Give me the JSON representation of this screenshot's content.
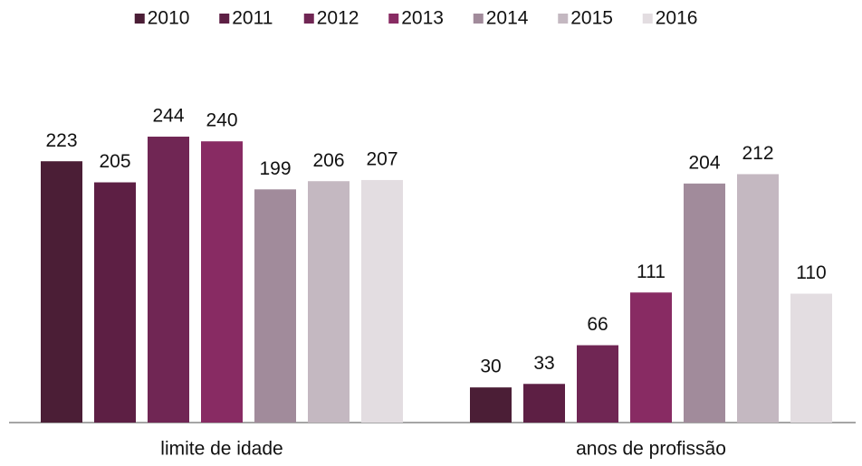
{
  "chart_data": {
    "type": "bar",
    "categories": [
      "limite de idade",
      "anos de profissão"
    ],
    "series": [
      {
        "name": "2010",
        "color": "#4b1e36",
        "values": [
          223,
          30
        ]
      },
      {
        "name": "2011",
        "color": "#5d1f44",
        "values": [
          205,
          33
        ]
      },
      {
        "name": "2012",
        "color": "#702654",
        "values": [
          244,
          66
        ]
      },
      {
        "name": "2013",
        "color": "#882b63",
        "values": [
          240,
          111
        ]
      },
      {
        "name": "2014",
        "color": "#a18b9b",
        "values": [
          199,
          204
        ]
      },
      {
        "name": "2015",
        "color": "#c4b8c1",
        "values": [
          206,
          212
        ]
      },
      {
        "name": "2016",
        "color": "#e3dde1",
        "values": [
          207,
          110
        ]
      }
    ],
    "legend": "top"
  }
}
